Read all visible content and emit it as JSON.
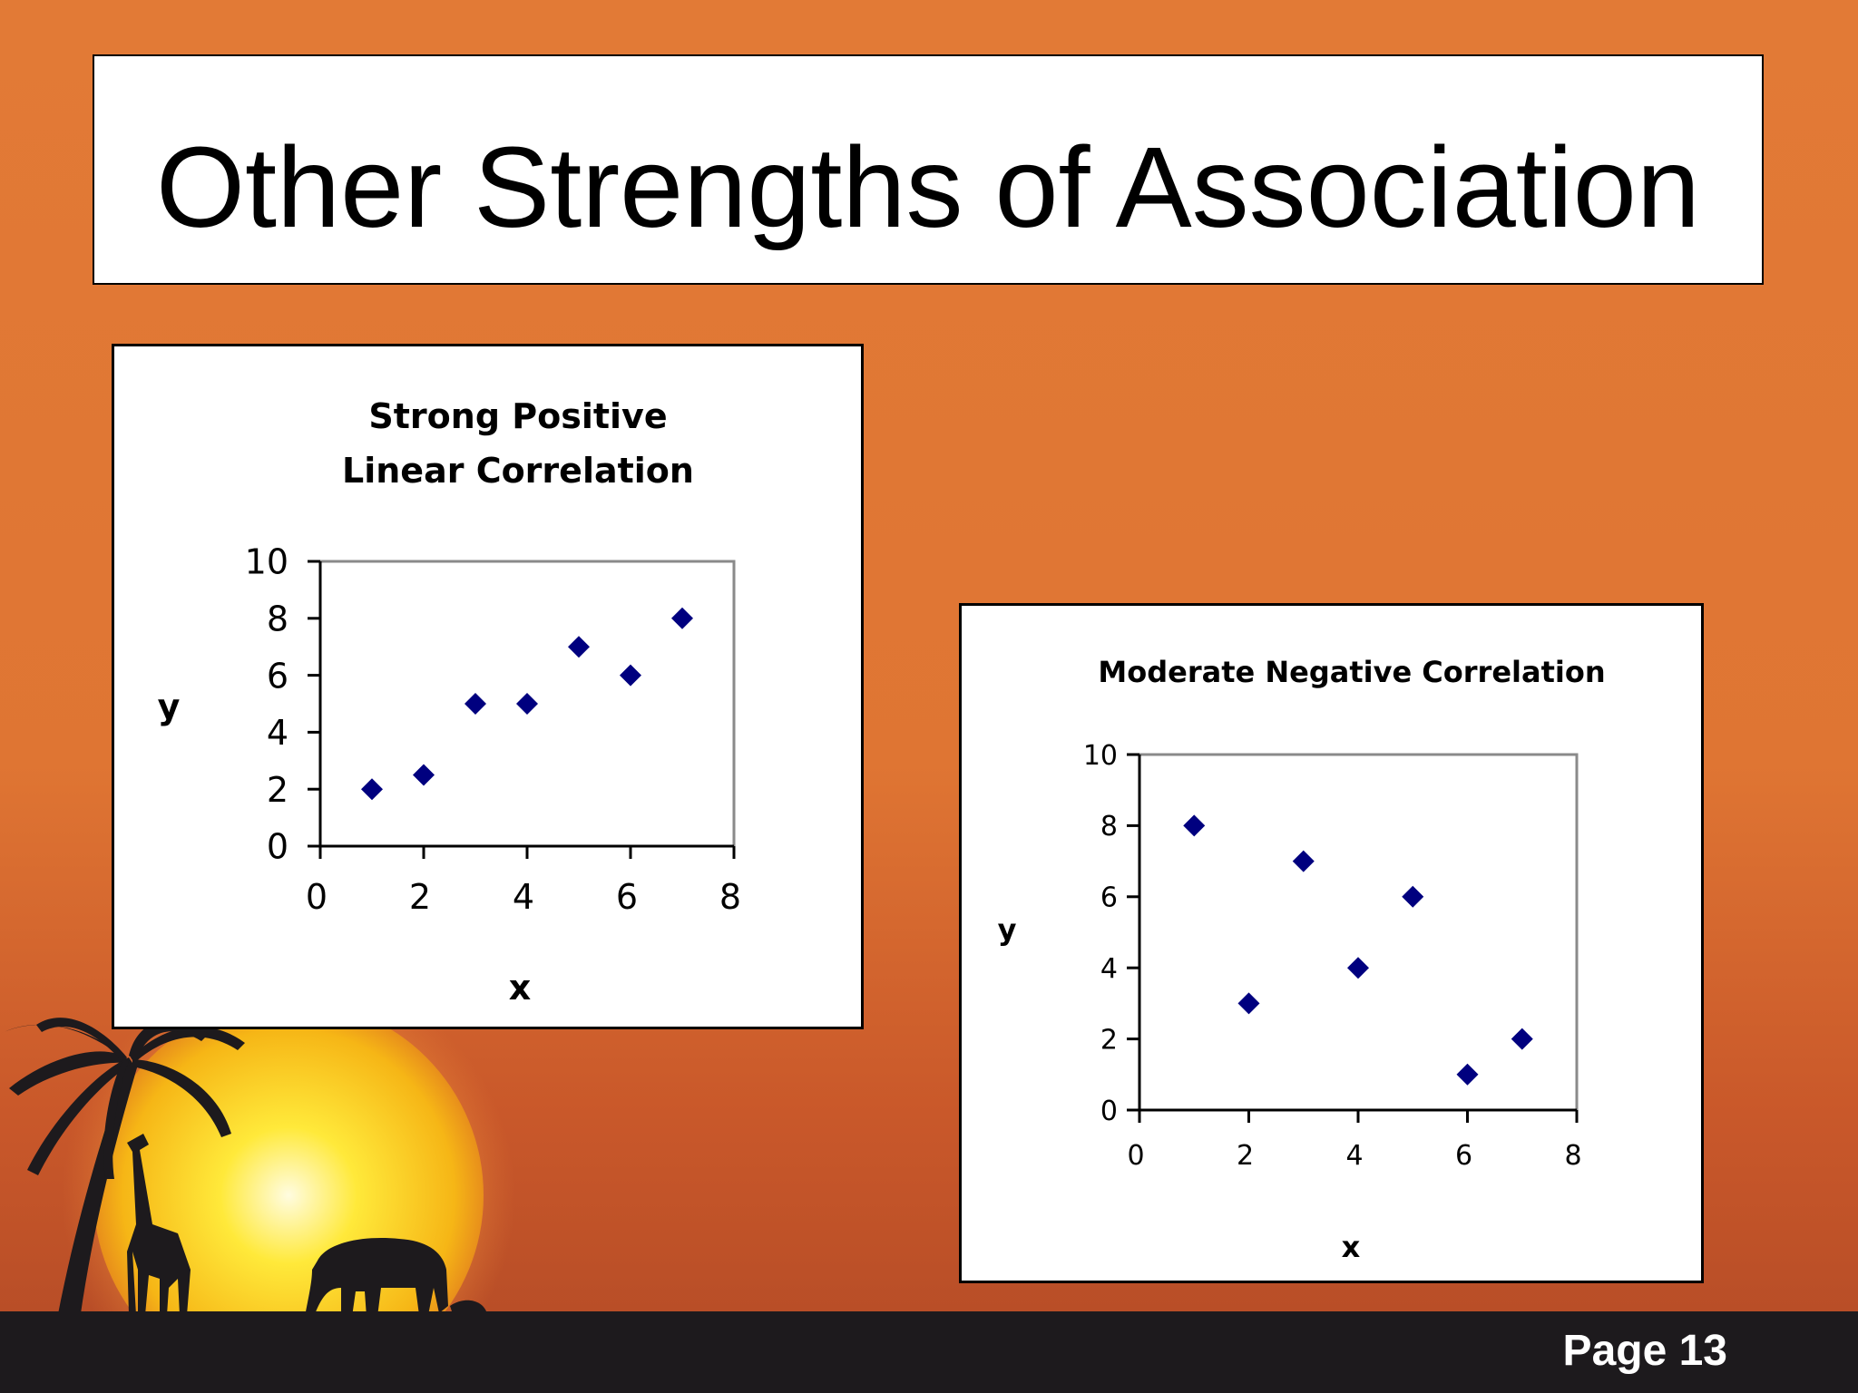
{
  "slide": {
    "title": "Other Strengths of Association",
    "page_label": "Page 13"
  },
  "colors": {
    "background": "#e27a36",
    "marker": "#00007f",
    "bottom_band": "#1d1a1d"
  },
  "chart_data": [
    {
      "type": "scatter",
      "title_lines": [
        "Strong Positive",
        "Linear Correlation"
      ],
      "xlabel": "x",
      "ylabel": "y",
      "xlim": [
        0,
        8
      ],
      "ylim": [
        0,
        10
      ],
      "x_ticks": [
        0,
        2,
        4,
        6,
        8
      ],
      "y_ticks": [
        0,
        2,
        4,
        6,
        8,
        10
      ],
      "marker": "diamond",
      "grid": false,
      "x": [
        1,
        2,
        3,
        4,
        5,
        6,
        7
      ],
      "y": [
        2,
        2.5,
        5,
        5,
        7,
        6,
        8
      ]
    },
    {
      "type": "scatter",
      "title_lines": [
        "Moderate Negative Correlation"
      ],
      "xlabel": "x",
      "ylabel": "y",
      "xlim": [
        0,
        8
      ],
      "ylim": [
        0,
        10
      ],
      "x_ticks": [
        0,
        2,
        4,
        6,
        8
      ],
      "y_ticks": [
        0,
        2,
        4,
        6,
        8,
        10
      ],
      "marker": "diamond",
      "grid": false,
      "x": [
        1,
        2,
        3,
        4,
        5,
        6,
        7
      ],
      "y": [
        8,
        3,
        7,
        4,
        6,
        1,
        2
      ]
    }
  ]
}
